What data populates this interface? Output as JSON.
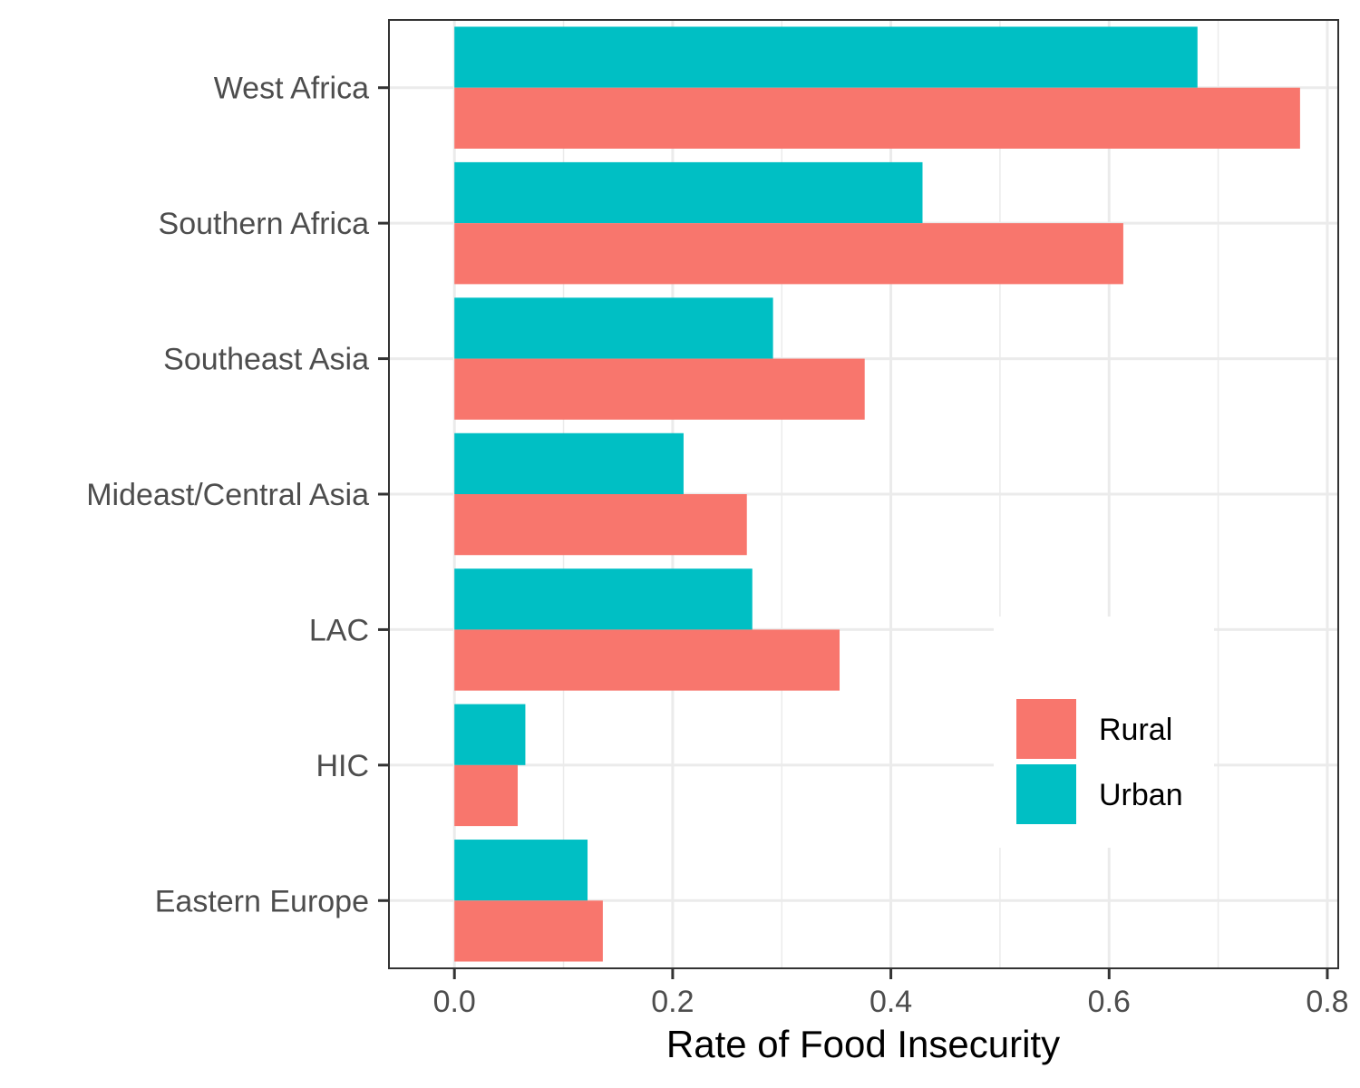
{
  "chart_data": {
    "type": "bar",
    "orientation": "horizontal",
    "title": "",
    "xlabel": "Rate of Food Insecurity",
    "ylabel": "",
    "xlim": [
      -0.06,
      0.81
    ],
    "x_ticks": [
      0.0,
      0.2,
      0.4,
      0.6,
      0.8
    ],
    "x_tick_labels": [
      "0.0",
      "0.2",
      "0.4",
      "0.6",
      "0.8"
    ],
    "grid": true,
    "legend_position": "bottom-right inside",
    "categories": [
      "West Africa",
      "Southern Africa",
      "Southeast Asia",
      "Mideast/Central Asia",
      "LAC",
      "HIC",
      "Eastern Europe"
    ],
    "series": [
      {
        "name": "Rural",
        "color": "#F8766D",
        "values": [
          0.775,
          0.613,
          0.376,
          0.268,
          0.353,
          0.058,
          0.136
        ]
      },
      {
        "name": "Urban",
        "color": "#00BFC4",
        "values": [
          0.681,
          0.429,
          0.292,
          0.21,
          0.273,
          0.065,
          0.122
        ]
      }
    ]
  }
}
